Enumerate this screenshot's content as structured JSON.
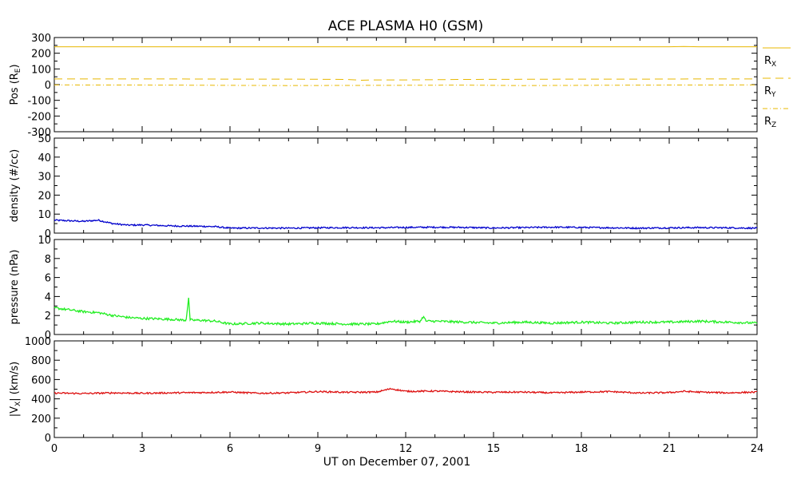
{
  "title": "ACE PLASMA H0 (GSM)",
  "xlabel": "UT on December 07, 2001",
  "chart_data": [
    {
      "type": "line",
      "name": "position",
      "ylabel": "Pos (R",
      "ylabel_sub": "E",
      "ylabel_tail": ")",
      "ylim": [
        -300,
        300
      ],
      "yticks": [
        -300,
        -200,
        -100,
        0,
        100,
        200,
        300
      ],
      "series": [
        {
          "name": "R",
          "name_sub": "X",
          "color": "#e8b800",
          "dash": "solid",
          "x": [
            0,
            3,
            6,
            9,
            12,
            15,
            18,
            21,
            21.5,
            22,
            24
          ],
          "y": [
            241,
            241,
            241,
            241,
            241,
            241,
            241,
            241,
            243,
            241,
            241
          ]
        },
        {
          "name": "R",
          "name_sub": "Y",
          "color": "#e8b800",
          "dash": "dashed",
          "x": [
            0,
            2,
            4,
            6,
            8,
            10,
            10.5,
            11,
            12,
            14,
            16,
            18,
            20,
            22,
            24
          ],
          "y": [
            36,
            36,
            36,
            35,
            35,
            33,
            28,
            30,
            30,
            33,
            34,
            35,
            35,
            36,
            36
          ]
        },
        {
          "name": "R",
          "name_sub": "Z",
          "color": "#e8b800",
          "dash": "dashdot",
          "x": [
            0,
            4,
            8,
            12,
            14,
            16,
            20,
            24
          ],
          "y": [
            -2,
            -3,
            -6,
            -4,
            -3,
            -6,
            -3,
            -2
          ]
        }
      ]
    },
    {
      "type": "line",
      "name": "density",
      "ylabel": "density (#/cc)",
      "ylim": [
        0,
        50
      ],
      "yticks": [
        0,
        10,
        20,
        30,
        40,
        50
      ],
      "series": [
        {
          "name": "",
          "color": "#0000cc",
          "x": [
            0,
            0.5,
            1,
            1.5,
            2,
            2.5,
            3,
            4,
            5,
            5.5,
            6,
            7,
            8,
            9,
            10,
            11,
            12,
            13,
            14,
            15,
            16,
            17,
            18,
            19,
            20,
            21,
            22,
            23,
            24
          ],
          "y": [
            6.8,
            6.5,
            6.2,
            6.8,
            5.0,
            4.2,
            4.3,
            3.8,
            3.6,
            3.4,
            2.6,
            2.7,
            2.6,
            2.8,
            2.9,
            2.8,
            3.0,
            3.1,
            3.0,
            2.7,
            2.9,
            3.1,
            3.0,
            2.8,
            2.6,
            2.8,
            2.9,
            2.8,
            2.6
          ],
          "noise": 0.4
        }
      ]
    },
    {
      "type": "line",
      "name": "pressure",
      "ylabel": "pressure (nPa)",
      "ylim": [
        0,
        10
      ],
      "yticks": [
        0,
        2,
        4,
        6,
        8,
        10
      ],
      "series": [
        {
          "name": "",
          "color": "#22ee22",
          "x": [
            0,
            0.5,
            1,
            1.5,
            2,
            2.5,
            3,
            4,
            4.5,
            4.6,
            4.62,
            4.7,
            5,
            5.5,
            6,
            7,
            8,
            9,
            10,
            11,
            11.5,
            12,
            12.5,
            12.6,
            12.7,
            13,
            14,
            15,
            16,
            17,
            18,
            19,
            20,
            21,
            22,
            23,
            24
          ],
          "y": [
            2.8,
            2.6,
            2.4,
            2.3,
            2.0,
            1.8,
            1.7,
            1.6,
            1.5,
            4.2,
            1.6,
            1.5,
            1.5,
            1.4,
            1.1,
            1.2,
            1.1,
            1.2,
            1.1,
            1.1,
            1.4,
            1.3,
            1.4,
            1.9,
            1.4,
            1.4,
            1.3,
            1.2,
            1.3,
            1.2,
            1.3,
            1.2,
            1.3,
            1.3,
            1.4,
            1.3,
            1.2
          ],
          "noise": 0.12
        }
      ]
    },
    {
      "type": "line",
      "name": "velocity",
      "ylabel": "|V",
      "ylabel_sub": "X",
      "ylabel_tail": "| (km/s)",
      "ylim": [
        0,
        1000
      ],
      "yticks": [
        0,
        200,
        400,
        600,
        800,
        1000
      ],
      "series": [
        {
          "name": "",
          "color": "#dd1111",
          "x": [
            0,
            1,
            2,
            3,
            4,
            5,
            6,
            7,
            8,
            9,
            10,
            11,
            11.5,
            12,
            13,
            14,
            15,
            16,
            17,
            18,
            19,
            20,
            21,
            21.5,
            22,
            23,
            24
          ],
          "y": [
            460,
            455,
            462,
            458,
            462,
            465,
            470,
            458,
            462,
            475,
            468,
            470,
            505,
            478,
            480,
            472,
            468,
            470,
            462,
            470,
            475,
            460,
            465,
            478,
            470,
            462,
            470
          ],
          "noise": 8
        }
      ]
    }
  ],
  "xaxis": {
    "xlim": [
      0,
      24
    ],
    "ticks": [
      "0",
      "3",
      "6",
      "9",
      "12",
      "15",
      "18",
      "21",
      "24"
    ]
  }
}
